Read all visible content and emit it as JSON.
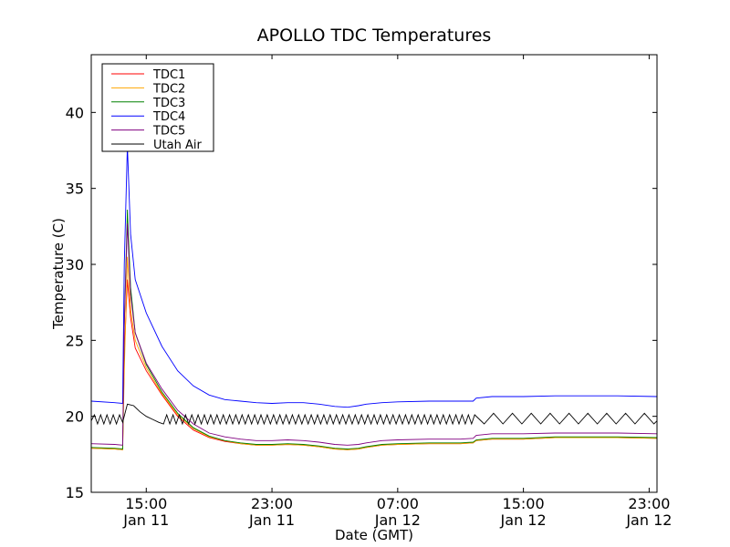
{
  "chart_data": {
    "type": "line",
    "title": "APOLLO TDC Temperatures",
    "xlabel": "Date (GMT)",
    "ylabel": "Temperature (C)",
    "xlim": [
      11.5,
      47.5
    ],
    "ylim": [
      15,
      43.8
    ],
    "grid": false,
    "legend_position": "top-left",
    "x_ticks": [
      {
        "x": 15,
        "time": "15:00",
        "date": "Jan 11"
      },
      {
        "x": 23,
        "time": "23:00",
        "date": "Jan 11"
      },
      {
        "x": 31,
        "time": "07:00",
        "date": "Jan 12"
      },
      {
        "x": 39,
        "time": "15:00",
        "date": "Jan 12"
      },
      {
        "x": 47,
        "time": "23:00",
        "date": "Jan 12"
      }
    ],
    "y_ticks": [
      15,
      20,
      25,
      30,
      35,
      40
    ],
    "series": [
      {
        "name": "TDC1",
        "color": "#ff0000",
        "points": [
          [
            11.5,
            17.9
          ],
          [
            13.0,
            17.85
          ],
          [
            13.5,
            17.8
          ],
          [
            13.6,
            24
          ],
          [
            13.8,
            29.0
          ],
          [
            14.0,
            26.5
          ],
          [
            14.3,
            24.5
          ],
          [
            15,
            23.0
          ],
          [
            16,
            21.4
          ],
          [
            17,
            20.0
          ],
          [
            18,
            19.1
          ],
          [
            19,
            18.6
          ],
          [
            20,
            18.35
          ],
          [
            21,
            18.2
          ],
          [
            22,
            18.1
          ],
          [
            23,
            18.1
          ],
          [
            24,
            18.15
          ],
          [
            25,
            18.1
          ],
          [
            26,
            18.0
          ],
          [
            27,
            17.85
          ],
          [
            27.8,
            17.8
          ],
          [
            28.5,
            17.85
          ],
          [
            29,
            17.95
          ],
          [
            30,
            18.1
          ],
          [
            31,
            18.15
          ],
          [
            33,
            18.2
          ],
          [
            35,
            18.2
          ],
          [
            35.8,
            18.25
          ],
          [
            36,
            18.4
          ],
          [
            37,
            18.5
          ],
          [
            39,
            18.5
          ],
          [
            41,
            18.6
          ],
          [
            43,
            18.6
          ],
          [
            45,
            18.6
          ],
          [
            47.5,
            18.55
          ]
        ]
      },
      {
        "name": "TDC2",
        "color": "#ffa500",
        "points": [
          [
            11.5,
            17.9
          ],
          [
            13.0,
            17.85
          ],
          [
            13.5,
            17.8
          ],
          [
            13.6,
            23
          ],
          [
            13.8,
            30.5
          ],
          [
            14.0,
            27.0
          ],
          [
            14.3,
            25.0
          ],
          [
            15,
            23.2
          ],
          [
            16,
            21.5
          ],
          [
            17,
            20.1
          ],
          [
            18,
            19.2
          ],
          [
            19,
            18.65
          ],
          [
            20,
            18.4
          ],
          [
            21,
            18.2
          ],
          [
            22,
            18.1
          ],
          [
            23,
            18.1
          ],
          [
            24,
            18.15
          ],
          [
            25,
            18.1
          ],
          [
            26,
            18.0
          ],
          [
            27,
            17.85
          ],
          [
            27.8,
            17.8
          ],
          [
            28.5,
            17.85
          ],
          [
            29,
            17.95
          ],
          [
            30,
            18.1
          ],
          [
            31,
            18.15
          ],
          [
            33,
            18.2
          ],
          [
            35,
            18.2
          ],
          [
            35.8,
            18.25
          ],
          [
            36,
            18.4
          ],
          [
            37,
            18.5
          ],
          [
            39,
            18.5
          ],
          [
            41,
            18.6
          ],
          [
            43,
            18.6
          ],
          [
            45,
            18.6
          ],
          [
            47.5,
            18.55
          ]
        ]
      },
      {
        "name": "TDC3",
        "color": "#008000",
        "points": [
          [
            11.5,
            17.95
          ],
          [
            13.0,
            17.9
          ],
          [
            13.5,
            17.85
          ],
          [
            13.6,
            26
          ],
          [
            13.8,
            33.6
          ],
          [
            14.0,
            28.5
          ],
          [
            14.3,
            25.5
          ],
          [
            15,
            23.4
          ],
          [
            16,
            21.6
          ],
          [
            17,
            20.2
          ],
          [
            18,
            19.25
          ],
          [
            19,
            18.7
          ],
          [
            20,
            18.4
          ],
          [
            21,
            18.25
          ],
          [
            22,
            18.15
          ],
          [
            23,
            18.15
          ],
          [
            24,
            18.2
          ],
          [
            25,
            18.15
          ],
          [
            26,
            18.05
          ],
          [
            27,
            17.9
          ],
          [
            27.8,
            17.85
          ],
          [
            28.5,
            17.9
          ],
          [
            29,
            18.0
          ],
          [
            30,
            18.15
          ],
          [
            31,
            18.2
          ],
          [
            33,
            18.25
          ],
          [
            35,
            18.25
          ],
          [
            35.8,
            18.3
          ],
          [
            36,
            18.45
          ],
          [
            37,
            18.55
          ],
          [
            39,
            18.55
          ],
          [
            41,
            18.65
          ],
          [
            43,
            18.65
          ],
          [
            45,
            18.65
          ],
          [
            47.5,
            18.6
          ]
        ]
      },
      {
        "name": "TDC4",
        "color": "#0000ff",
        "points": [
          [
            11.5,
            21.0
          ],
          [
            13.0,
            20.9
          ],
          [
            13.5,
            20.85
          ],
          [
            13.6,
            30
          ],
          [
            13.8,
            37.8
          ],
          [
            14.0,
            32.0
          ],
          [
            14.3,
            29.0
          ],
          [
            15,
            26.8
          ],
          [
            16,
            24.6
          ],
          [
            17,
            23.0
          ],
          [
            18,
            22.0
          ],
          [
            19,
            21.4
          ],
          [
            20,
            21.1
          ],
          [
            21,
            21.0
          ],
          [
            22,
            20.9
          ],
          [
            23,
            20.85
          ],
          [
            24,
            20.9
          ],
          [
            25,
            20.9
          ],
          [
            26,
            20.8
          ],
          [
            27,
            20.65
          ],
          [
            27.8,
            20.6
          ],
          [
            28.5,
            20.7
          ],
          [
            29,
            20.8
          ],
          [
            30,
            20.9
          ],
          [
            31,
            20.95
          ],
          [
            33,
            21.0
          ],
          [
            35,
            21.0
          ],
          [
            35.8,
            21.0
          ],
          [
            36,
            21.2
          ],
          [
            37,
            21.3
          ],
          [
            39,
            21.3
          ],
          [
            41,
            21.35
          ],
          [
            43,
            21.35
          ],
          [
            45,
            21.35
          ],
          [
            47.5,
            21.3
          ]
        ]
      },
      {
        "name": "TDC5",
        "color": "#800080",
        "points": [
          [
            11.5,
            18.2
          ],
          [
            13.0,
            18.15
          ],
          [
            13.5,
            18.1
          ],
          [
            13.6,
            26
          ],
          [
            13.8,
            32.7
          ],
          [
            14.0,
            28.0
          ],
          [
            14.3,
            25.5
          ],
          [
            15,
            23.5
          ],
          [
            16,
            21.8
          ],
          [
            17,
            20.4
          ],
          [
            18,
            19.5
          ],
          [
            19,
            18.9
          ],
          [
            20,
            18.65
          ],
          [
            21,
            18.5
          ],
          [
            22,
            18.4
          ],
          [
            23,
            18.4
          ],
          [
            24,
            18.45
          ],
          [
            25,
            18.4
          ],
          [
            26,
            18.3
          ],
          [
            27,
            18.15
          ],
          [
            27.8,
            18.1
          ],
          [
            28.5,
            18.15
          ],
          [
            29,
            18.25
          ],
          [
            30,
            18.4
          ],
          [
            31,
            18.45
          ],
          [
            33,
            18.5
          ],
          [
            35,
            18.5
          ],
          [
            35.8,
            18.55
          ],
          [
            36,
            18.75
          ],
          [
            37,
            18.85
          ],
          [
            39,
            18.85
          ],
          [
            41,
            18.9
          ],
          [
            43,
            18.9
          ],
          [
            45,
            18.9
          ],
          [
            47.5,
            18.85
          ]
        ]
      },
      {
        "name": "Utah Air",
        "color": "#000000",
        "points": [
          [
            11.5,
            19.7
          ],
          [
            11.7,
            20.1
          ],
          [
            11.9,
            19.5
          ],
          [
            12.1,
            20.1
          ],
          [
            12.3,
            19.5
          ],
          [
            12.5,
            20.1
          ],
          [
            12.7,
            19.5
          ],
          [
            12.9,
            20.1
          ],
          [
            13.1,
            19.5
          ],
          [
            13.3,
            20.1
          ],
          [
            13.5,
            19.6
          ],
          [
            13.8,
            20.8
          ],
          [
            14.2,
            20.7
          ],
          [
            14.6,
            20.3
          ],
          [
            15.0,
            20.0
          ],
          [
            15.4,
            19.8
          ],
          [
            15.8,
            19.6
          ],
          [
            16.1,
            19.5
          ],
          [
            16.3,
            20.1
          ],
          [
            16.5,
            19.5
          ],
          [
            16.7,
            20.1
          ],
          [
            16.9,
            19.5
          ],
          [
            17.1,
            20.1
          ],
          [
            17.3,
            19.5
          ],
          [
            17.5,
            20.1
          ],
          [
            17.7,
            19.5
          ],
          [
            17.9,
            20.1
          ],
          [
            18.1,
            19.5
          ],
          [
            18.3,
            20.1
          ],
          [
            18.5,
            19.5
          ],
          [
            18.7,
            20.1
          ],
          [
            18.9,
            19.5
          ],
          [
            19.1,
            20.1
          ],
          [
            19.3,
            19.5
          ],
          [
            19.5,
            20.1
          ],
          [
            19.7,
            19.5
          ],
          [
            19.9,
            20.1
          ],
          [
            20.1,
            19.5
          ],
          [
            20.3,
            20.1
          ],
          [
            20.5,
            19.5
          ],
          [
            20.7,
            20.1
          ],
          [
            20.9,
            19.5
          ],
          [
            21.1,
            20.1
          ],
          [
            21.3,
            19.5
          ],
          [
            21.5,
            20.1
          ],
          [
            21.7,
            19.5
          ],
          [
            21.9,
            20.1
          ],
          [
            22.1,
            19.5
          ],
          [
            22.3,
            20.1
          ],
          [
            22.5,
            19.5
          ],
          [
            22.7,
            20.1
          ],
          [
            22.9,
            19.5
          ],
          [
            23.1,
            20.1
          ],
          [
            23.3,
            19.5
          ],
          [
            23.5,
            20.1
          ],
          [
            23.7,
            19.5
          ],
          [
            23.9,
            20.1
          ],
          [
            24.1,
            19.5
          ],
          [
            24.3,
            20.1
          ],
          [
            24.5,
            19.5
          ],
          [
            24.7,
            20.1
          ],
          [
            24.9,
            19.5
          ],
          [
            25.1,
            20.1
          ],
          [
            25.3,
            19.5
          ],
          [
            25.5,
            20.1
          ],
          [
            25.7,
            19.5
          ],
          [
            25.9,
            20.1
          ],
          [
            26.1,
            19.5
          ],
          [
            26.3,
            20.1
          ],
          [
            26.5,
            19.5
          ],
          [
            26.7,
            20.1
          ],
          [
            26.9,
            19.5
          ],
          [
            27.1,
            20.1
          ],
          [
            27.3,
            19.5
          ],
          [
            27.5,
            20.1
          ],
          [
            27.7,
            19.5
          ],
          [
            27.9,
            20.1
          ],
          [
            28.1,
            19.5
          ],
          [
            28.3,
            20.1
          ],
          [
            28.5,
            19.5
          ],
          [
            28.7,
            20.1
          ],
          [
            28.9,
            19.5
          ],
          [
            29.1,
            20.1
          ],
          [
            29.3,
            19.5
          ],
          [
            29.5,
            20.1
          ],
          [
            29.7,
            19.5
          ],
          [
            29.9,
            20.1
          ],
          [
            30.1,
            19.5
          ],
          [
            30.3,
            20.1
          ],
          [
            30.5,
            19.5
          ],
          [
            30.7,
            20.1
          ],
          [
            30.9,
            19.5
          ],
          [
            31.1,
            20.1
          ],
          [
            31.3,
            19.5
          ],
          [
            31.5,
            20.1
          ],
          [
            31.7,
            19.5
          ],
          [
            31.9,
            20.1
          ],
          [
            32.1,
            19.5
          ],
          [
            32.3,
            20.1
          ],
          [
            32.5,
            19.5
          ],
          [
            32.7,
            20.1
          ],
          [
            32.9,
            19.5
          ],
          [
            33.1,
            20.1
          ],
          [
            33.3,
            19.5
          ],
          [
            33.5,
            20.1
          ],
          [
            33.7,
            19.5
          ],
          [
            33.9,
            20.1
          ],
          [
            34.1,
            19.5
          ],
          [
            34.3,
            20.1
          ],
          [
            34.5,
            19.5
          ],
          [
            34.7,
            20.1
          ],
          [
            34.9,
            19.5
          ],
          [
            35.1,
            20.1
          ],
          [
            35.3,
            19.5
          ],
          [
            35.5,
            20.1
          ],
          [
            35.7,
            19.5
          ],
          [
            35.9,
            20.1
          ],
          [
            36.5,
            19.5
          ],
          [
            37.1,
            20.2
          ],
          [
            37.7,
            19.5
          ],
          [
            38.3,
            20.2
          ],
          [
            38.9,
            19.5
          ],
          [
            39.5,
            20.2
          ],
          [
            40.1,
            19.5
          ],
          [
            40.7,
            20.2
          ],
          [
            41.3,
            19.5
          ],
          [
            41.9,
            20.2
          ],
          [
            42.5,
            19.5
          ],
          [
            43.1,
            20.2
          ],
          [
            43.7,
            19.5
          ],
          [
            44.3,
            20.2
          ],
          [
            44.9,
            19.5
          ],
          [
            45.5,
            20.2
          ],
          [
            46.1,
            19.5
          ],
          [
            46.7,
            20.2
          ],
          [
            47.3,
            19.5
          ],
          [
            47.5,
            19.7
          ]
        ]
      }
    ]
  }
}
